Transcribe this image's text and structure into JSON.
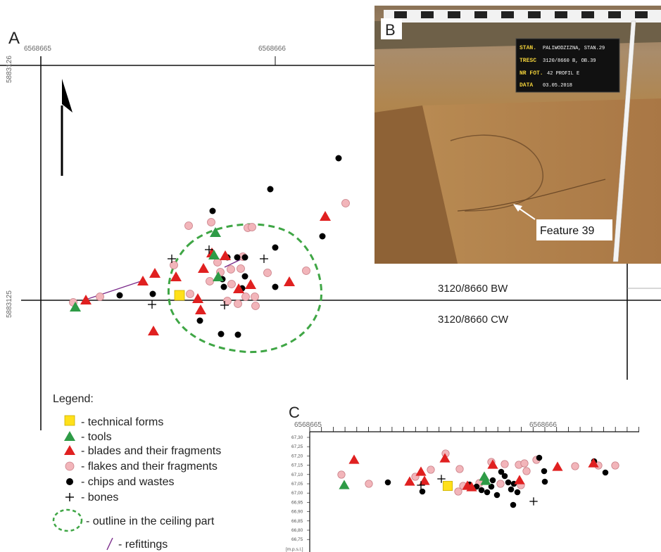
{
  "panels": {
    "a_letter": "A",
    "b_letter": "B",
    "c_letter": "C"
  },
  "plan_a": {
    "x_coords": [
      "6568665",
      "6568666"
    ],
    "y_coords": [
      "5883126",
      "5883125"
    ],
    "section_labels": [
      "3120/8660 BW",
      "3120/8660 CW"
    ],
    "symbols": {
      "technical_forms": [
        [
          255,
          420
        ]
      ],
      "tools": [
        [
          107,
          436
        ],
        [
          306,
          330
        ],
        [
          304,
          362
        ],
        [
          310,
          393
        ]
      ],
      "blades": [
        [
          122,
          426
        ],
        [
          203,
          399
        ],
        [
          220,
          388
        ],
        [
          250,
          393
        ],
        [
          218,
          470
        ],
        [
          281,
          424
        ],
        [
          285,
          440
        ],
        [
          289,
          381
        ],
        [
          301,
          359
        ],
        [
          320,
          363
        ],
        [
          356,
          404
        ],
        [
          411,
          400
        ],
        [
          462,
          307
        ],
        [
          339,
          410
        ]
      ],
      "flakes": [
        [
          104,
          430
        ],
        [
          142,
          422
        ],
        [
          268,
          321
        ],
        [
          300,
          316
        ],
        [
          352,
          324
        ],
        [
          358,
          323
        ],
        [
          247,
          377
        ],
        [
          298,
          400
        ],
        [
          313,
          387
        ],
        [
          329,
          404
        ],
        [
          323,
          428
        ],
        [
          338,
          432
        ],
        [
          349,
          422
        ],
        [
          362,
          422
        ],
        [
          363,
          435
        ],
        [
          328,
          383
        ],
        [
          345,
          365
        ],
        [
          342,
          382
        ],
        [
          309,
          373
        ],
        [
          435,
          385
        ],
        [
          380,
          388
        ],
        [
          270,
          418
        ],
        [
          491,
          289
        ]
      ],
      "chips": [
        [
          170,
          420
        ],
        [
          217,
          418
        ],
        [
          302,
          300
        ],
        [
          337,
          366
        ],
        [
          348,
          366
        ],
        [
          323,
          366
        ],
        [
          316,
          397
        ],
        [
          344,
          410
        ],
        [
          348,
          393
        ],
        [
          318,
          408
        ],
        [
          391,
          352
        ],
        [
          391,
          408
        ],
        [
          384,
          269
        ],
        [
          481,
          225
        ],
        [
          458,
          336
        ],
        [
          284,
          456
        ],
        [
          314,
          475
        ],
        [
          338,
          476
        ]
      ],
      "bones": [
        [
          244,
          368
        ],
        [
          216,
          433
        ],
        [
          297,
          355
        ],
        [
          319,
          434
        ],
        [
          375,
          368
        ]
      ],
      "refittings": [
        [
          [
            122,
            426
          ],
          [
            203,
            399
          ]
        ],
        [
          [
            319,
            380
          ],
          [
            348,
            366
          ]
        ]
      ]
    }
  },
  "photo_b": {
    "sign_rows": [
      {
        "key": "STAN.",
        "value": "PALIWODZIZNA, STAN.29"
      },
      {
        "key": "TRESC",
        "value": "3120/8660 B, OB.39"
      },
      {
        "key": "NR FOT.",
        "value": "42     PROFIL E"
      },
      {
        "key": "DATA",
        "value": "03.05.2018"
      }
    ],
    "feature_label": "Feature 39"
  },
  "legend": {
    "title": "Legend:",
    "items": [
      {
        "symbol": "technical-forms",
        "label": "- technical forms"
      },
      {
        "symbol": "tools",
        "label": "- tools"
      },
      {
        "symbol": "blades",
        "label": "- blades and their fragments"
      },
      {
        "symbol": "flakes",
        "label": "- flakes and their fragments"
      },
      {
        "symbol": "chips",
        "label": "- chips and wastes"
      },
      {
        "symbol": "bones",
        "label": "- bones"
      },
      {
        "symbol": "outline",
        "label": "- outline in the ceiling part"
      },
      {
        "symbol": "refittings",
        "label": "- refittings"
      }
    ]
  },
  "profile_c": {
    "x_coords": [
      "6568665",
      "6568666"
    ],
    "y_ticks": [
      "67,30",
      "67,25",
      "67,20",
      "67,15",
      "67,10",
      "67,05",
      "67,00",
      "66,95",
      "66,90",
      "66,85",
      "66,80",
      "66,75"
    ],
    "y_unit": "[m.p.s.l.]",
    "symbols": {
      "technical_forms": [
        [
          636,
          691
        ]
      ],
      "tools": [
        [
          489,
          689
        ],
        [
          688,
          677
        ],
        [
          690,
          683
        ]
      ],
      "blades": [
        [
          503,
          653
        ],
        [
          582,
          684
        ],
        [
          598,
          670
        ],
        [
          603,
          683
        ],
        [
          632,
          651
        ],
        [
          664,
          690
        ],
        [
          670,
          692
        ],
        [
          700,
          660
        ],
        [
          738,
          682
        ],
        [
          792,
          663
        ],
        [
          843,
          658
        ]
      ],
      "flakes": [
        [
          485,
          675
        ],
        [
          524,
          688
        ],
        [
          590,
          678
        ],
        [
          612,
          668
        ],
        [
          633,
          645
        ],
        [
          653,
          667
        ],
        [
          651,
          699
        ],
        [
          658,
          691
        ],
        [
          681,
          687
        ],
        [
          698,
          657
        ],
        [
          717,
          660
        ],
        [
          737,
          661
        ],
        [
          745,
          659
        ],
        [
          748,
          670
        ],
        [
          740,
          690
        ],
        [
          817,
          663
        ],
        [
          850,
          662
        ],
        [
          874,
          662
        ],
        [
          762,
          654
        ],
        [
          711,
          688
        ]
      ],
      "chips": [
        [
          551,
          686
        ],
        [
          600,
          699
        ],
        [
          667,
          689
        ],
        [
          677,
          692
        ],
        [
          684,
          697
        ],
        [
          692,
          700
        ],
        [
          698,
          692
        ],
        [
          706,
          704
        ],
        [
          700,
          683
        ],
        [
          712,
          671
        ],
        [
          717,
          677
        ],
        [
          722,
          686
        ],
        [
          726,
          696
        ],
        [
          729,
          718
        ],
        [
          735,
          700
        ],
        [
          730,
          688
        ],
        [
          766,
          651
        ],
        [
          773,
          670
        ],
        [
          774,
          685
        ],
        [
          860,
          672
        ],
        [
          844,
          656
        ]
      ],
      "bones": [
        [
          598,
          690
        ],
        [
          627,
          681
        ],
        [
          758,
          713
        ]
      ]
    }
  }
}
